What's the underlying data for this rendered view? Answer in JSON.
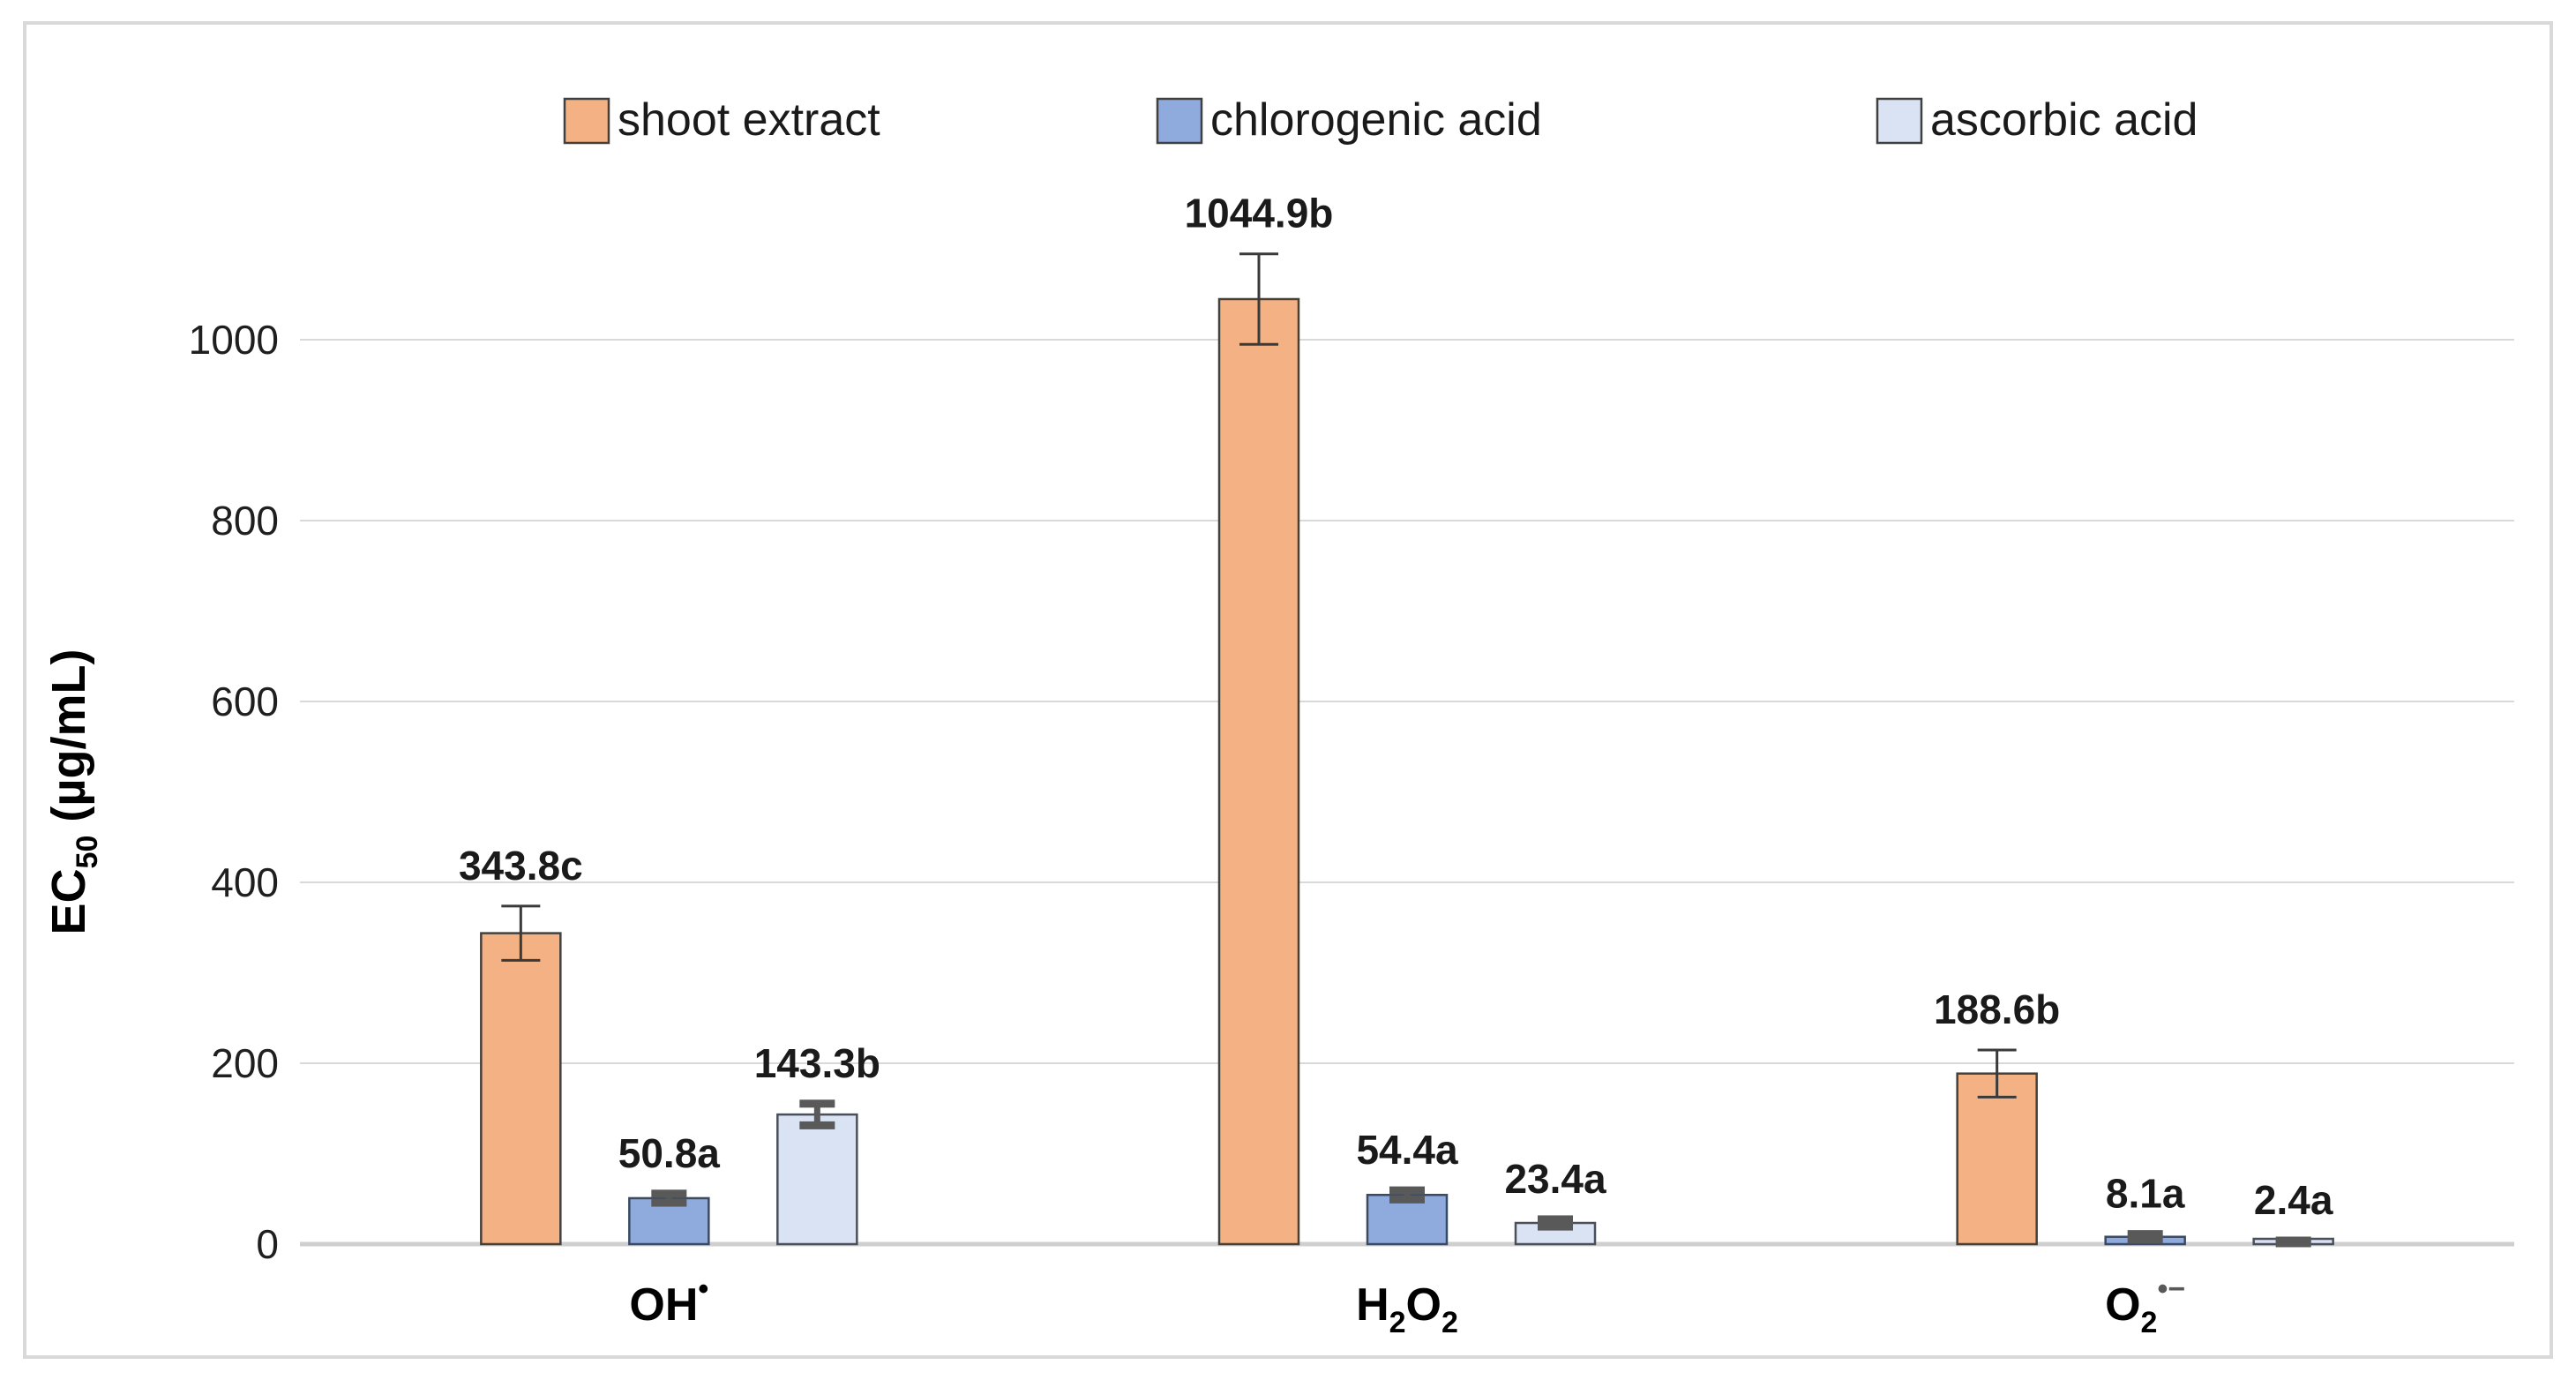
{
  "chart_data": {
    "type": "bar",
    "title": "",
    "ylabel": "EC50 (µg/mL)",
    "ylabel_parts": [
      {
        "t": "EC"
      },
      {
        "t": "50",
        "sub": true
      },
      {
        "t": " (µg/mL)"
      }
    ],
    "categories": [
      {
        "name": "hydroxyl-radical",
        "text": "OH•",
        "parts": [
          {
            "t": "OH"
          },
          {
            "t": "•",
            "sup": true
          }
        ]
      },
      {
        "name": "hydrogen-peroxide",
        "text": "H2O2",
        "parts": [
          {
            "t": "H"
          },
          {
            "t": "2",
            "sub": true
          },
          {
            "t": "O"
          },
          {
            "t": "2",
            "sub": true
          }
        ]
      },
      {
        "name": "superoxide-radical-anion",
        "text": "O2•−",
        "parts": [
          {
            "t": "O"
          },
          {
            "t": "2",
            "sub": true
          },
          {
            "t": "•−",
            "sup": true,
            "muted": true
          }
        ]
      }
    ],
    "series": [
      {
        "name": "shoot extract",
        "fill": "#F4B183",
        "stroke": "#44403C",
        "error_style": "thin-black",
        "values": [
          343.8,
          1044.9,
          188.6
        ],
        "errors": [
          30,
          50,
          26
        ],
        "labels": [
          "343.8c",
          "1044.9b",
          "188.6b"
        ]
      },
      {
        "name": "chlorogenic acid",
        "fill": "#8FAADC",
        "stroke": "#3B4A63",
        "error_style": "thick-gray",
        "values": [
          50.8,
          54.4,
          8.1
        ],
        "errors": [
          5,
          5,
          3
        ],
        "labels": [
          "50.8a",
          "54.4a",
          "8.1a"
        ]
      },
      {
        "name": "ascorbic acid",
        "fill": "#DAE3F3",
        "stroke": "#4A4F5A",
        "error_style": "thick-gray",
        "values": [
          143.3,
          23.4,
          2.4
        ],
        "errors": [
          12,
          4,
          1.5
        ],
        "labels": [
          "143.3b",
          "23.4a",
          "2.4a"
        ]
      }
    ],
    "y_axis": {
      "min": 0,
      "max": 1160,
      "ticks": [
        0,
        200,
        400,
        600,
        800,
        1000
      ],
      "tick_labels": [
        "0",
        "200",
        "400",
        "600",
        "800",
        "1000"
      ]
    },
    "legend": {
      "position": "top",
      "entries": [
        "shoot extract",
        "chlorogenic acid",
        "ascorbic acid"
      ]
    },
    "grid": true,
    "colors": {
      "grid": "#D9D9D9",
      "axis_line": "#CFCFCF",
      "error_gray": "#595959",
      "error_black": "#3A3A3A",
      "text": "#1F1F1F",
      "border": "#D9D9D9",
      "muted_script": "#595959"
    }
  }
}
